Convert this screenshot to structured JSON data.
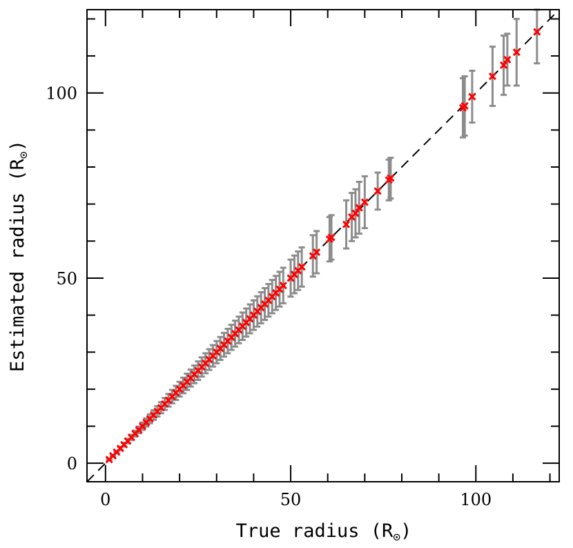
{
  "chart_data": {
    "type": "scatter",
    "title": "",
    "xlabel": "True radius (R",
    "ylabel": "Estimated radius (R",
    "label_subscript": "⊙",
    "xlim": [
      -5,
      122.5
    ],
    "ylim": [
      -5,
      122.5
    ],
    "xticks_major": [
      0,
      50,
      100
    ],
    "yticks_major": [
      0,
      50,
      100
    ],
    "minor_tick_step": 10,
    "reference_line": "y = x (dashed)",
    "grid": false,
    "legend": "none",
    "colors": {
      "marker": "#ff0000",
      "errorbar": "#8c8c8c",
      "reference": "#000000"
    },
    "series": [
      {
        "marker": "x",
        "x": [
          1,
          2,
          3,
          4,
          5,
          6,
          7,
          8,
          9,
          10,
          11,
          12,
          13,
          14,
          15,
          16,
          17,
          18,
          19,
          20,
          21,
          22,
          23,
          24,
          25,
          26,
          27,
          28,
          29,
          30,
          31,
          32,
          33,
          34,
          35,
          36,
          37,
          38,
          39,
          40,
          41,
          42,
          43,
          44,
          45,
          46,
          47,
          48,
          50,
          51,
          52,
          53,
          56,
          57,
          60.5,
          61,
          65,
          66.5,
          67.5,
          68.5,
          70,
          73.5,
          76.5,
          77,
          96.5,
          97,
          99,
          104.5,
          107.5,
          108.5,
          111,
          116.5
        ],
        "y": [
          1,
          2,
          3,
          4,
          5,
          6,
          7,
          8,
          9,
          10,
          11,
          12,
          13,
          14,
          15,
          16,
          17,
          18,
          19,
          20,
          21,
          22,
          23,
          24,
          25,
          26,
          27,
          28,
          29,
          30,
          31,
          32,
          33,
          34,
          35,
          36,
          37,
          38,
          39,
          40,
          41,
          42,
          43,
          44,
          45,
          46,
          47,
          48,
          50,
          51,
          52,
          53,
          56,
          57,
          60.5,
          61,
          64.5,
          66.5,
          67.5,
          69,
          70.5,
          73.5,
          76.5,
          77,
          96,
          96.5,
          99,
          104.5,
          107.5,
          109,
          111,
          116.5
        ],
        "yerr": [
          0.1,
          0.2,
          0.3,
          0.4,
          0.5,
          0.6,
          0.7,
          0.8,
          0.9,
          1,
          1.1,
          1.2,
          1.3,
          1.4,
          1.5,
          1.6,
          1.7,
          1.8,
          1.9,
          2,
          2.1,
          2.2,
          2.3,
          2.4,
          2.5,
          2.6,
          2.7,
          2.8,
          2.9,
          3,
          3.1,
          3.2,
          3.3,
          3.4,
          3.5,
          3.6,
          3.7,
          3.8,
          3.9,
          4,
          4.1,
          4.2,
          4.3,
          4.4,
          4.5,
          4.6,
          4.7,
          4.8,
          5,
          5.1,
          5.2,
          5.3,
          5.6,
          5.7,
          6,
          6,
          6.5,
          6.5,
          6.5,
          7,
          7,
          5,
          5.5,
          5.5,
          8,
          8,
          7,
          8,
          8,
          7,
          9,
          8.5
        ]
      }
    ]
  }
}
